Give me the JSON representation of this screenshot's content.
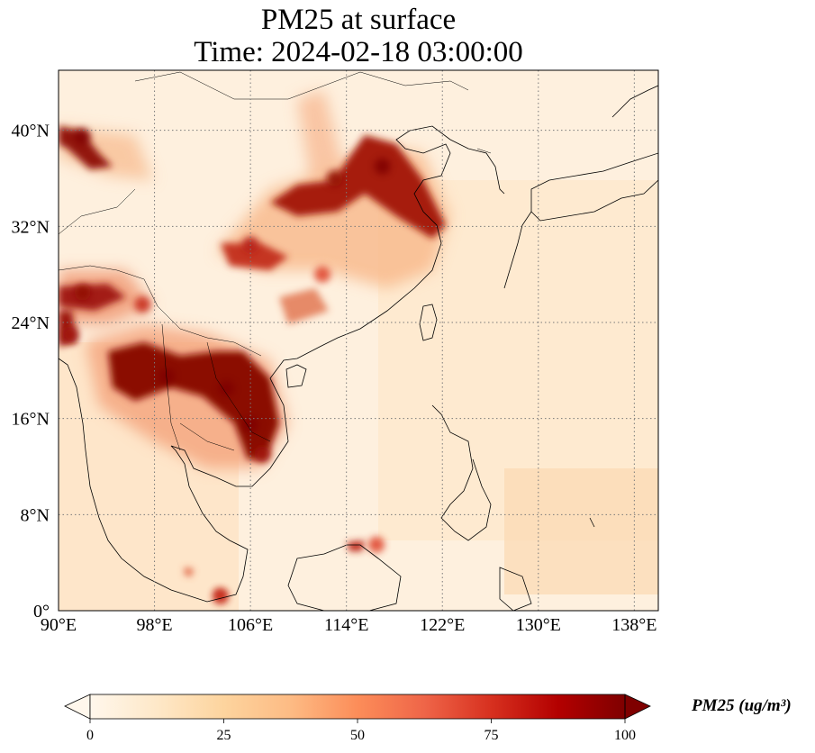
{
  "title": {
    "line1": "PM25 at surface",
    "line2": "Time: 2024-02-18 03:00:00"
  },
  "map": {
    "projection": "PlateCarree",
    "lon_range": [
      90,
      140
    ],
    "lat_range": [
      0,
      45
    ],
    "gridlines": "dotted",
    "lon_ticks": [
      {
        "value": 90,
        "label": "90°E"
      },
      {
        "value": 98,
        "label": "98°E"
      },
      {
        "value": 106,
        "label": "106°E"
      },
      {
        "value": 114,
        "label": "114°E"
      },
      {
        "value": 122,
        "label": "122°E"
      },
      {
        "value": 130,
        "label": "130°E"
      },
      {
        "value": 138,
        "label": "138°E"
      }
    ],
    "lat_ticks": [
      {
        "value": 0,
        "label": "0°"
      },
      {
        "value": 8,
        "label": "8°N"
      },
      {
        "value": 16,
        "label": "16°N"
      },
      {
        "value": 24,
        "label": "24°N"
      },
      {
        "value": 32,
        "label": "32°N"
      },
      {
        "value": 40,
        "label": "40°N"
      }
    ],
    "colormap": "OrRd",
    "colors": {
      "low": "#fff7ec",
      "mid_low": "#fdd49e",
      "mid": "#fc8d59",
      "mid_high": "#d7301f",
      "high": "#7f0000"
    },
    "hotspots": [
      {
        "name": "",
        "lon": 117,
        "lat": 37,
        "value": 100
      },
      {
        "name": "",
        "lon": 113,
        "lat": 36,
        "value": 95
      },
      {
        "name": "",
        "lon": 106,
        "lat": 30.5,
        "value": 85
      },
      {
        "name": "",
        "lon": 112,
        "lat": 28,
        "value": 70
      },
      {
        "name": "",
        "lon": 92,
        "lat": 39.5,
        "value": 100
      },
      {
        "name": "",
        "lon": 92,
        "lat": 26.5,
        "value": 95
      },
      {
        "name": "",
        "lon": 97,
        "lat": 25.5,
        "value": 80
      },
      {
        "name": "",
        "lon": 99,
        "lat": 19.5,
        "value": 100
      },
      {
        "name": "",
        "lon": 104,
        "lat": 18.5,
        "value": 100
      },
      {
        "name": "",
        "lon": 106,
        "lat": 15.5,
        "value": 100
      },
      {
        "name": "",
        "lon": 107,
        "lat": 13,
        "value": 90
      },
      {
        "name": "",
        "lon": 91,
        "lat": 23,
        "value": 90
      },
      {
        "name": "",
        "lon": 116.5,
        "lat": 5.5,
        "value": 70
      },
      {
        "name": "",
        "lon": 103.5,
        "lat": 1.2,
        "value": 80
      }
    ]
  },
  "colorbar": {
    "min": 0,
    "max": 100,
    "extend": "both",
    "ticks": [
      {
        "value": 0,
        "label": "0"
      },
      {
        "value": 25,
        "label": "25"
      },
      {
        "value": 50,
        "label": "50"
      },
      {
        "value": 75,
        "label": "75"
      },
      {
        "value": 100,
        "label": "100"
      }
    ],
    "label": "PM25 (ug/m³)"
  }
}
